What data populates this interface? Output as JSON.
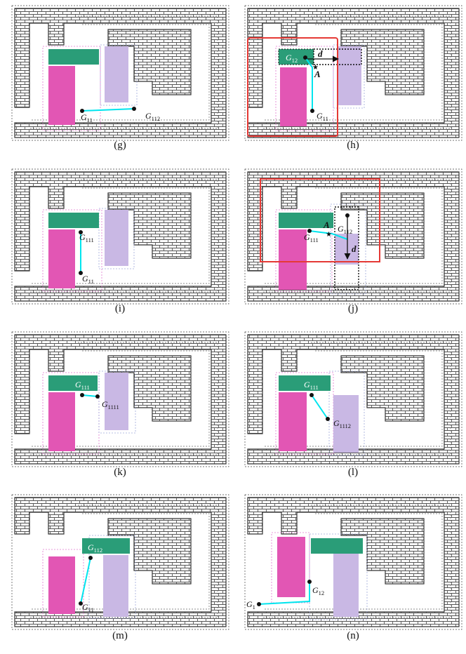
{
  "colors": {
    "brick_mortar": "#555555",
    "brick_face": "#ffffff",
    "bar": "#2a9d78",
    "magenta": "#e256b4",
    "lavender": "#c9b8e4",
    "edge": "#00e5ee",
    "frame": "#e53935"
  },
  "panels": [
    {
      "id": "g",
      "caption": "(g)",
      "labels": [
        {
          "base": "G",
          "sub": "11",
          "color": "black"
        },
        {
          "base": "G",
          "sub": "112",
          "color": "black"
        }
      ]
    },
    {
      "id": "h",
      "caption": "(h)",
      "labels": [
        {
          "base": "G",
          "sub": "12",
          "color": "white"
        },
        {
          "base": "G",
          "sub": "11",
          "color": "black"
        }
      ],
      "marks": [
        "d",
        "A"
      ]
    },
    {
      "id": "i",
      "caption": "(i)",
      "labels": [
        {
          "base": "G",
          "sub": "111",
          "color": "black"
        },
        {
          "base": "G",
          "sub": "11",
          "color": "black"
        }
      ]
    },
    {
      "id": "j",
      "caption": "(j)",
      "labels": [
        {
          "base": "G",
          "sub": "112",
          "color": "black"
        },
        {
          "base": "G",
          "sub": "111",
          "color": "black"
        }
      ],
      "marks": [
        "A",
        "d"
      ]
    },
    {
      "id": "k",
      "caption": "(k)",
      "labels": [
        {
          "base": "G",
          "sub": "111",
          "color": "white"
        },
        {
          "base": "G",
          "sub": "1111",
          "color": "black"
        }
      ]
    },
    {
      "id": "l",
      "caption": "(l)",
      "labels": [
        {
          "base": "G",
          "sub": "111",
          "color": "white"
        },
        {
          "base": "G",
          "sub": "1112",
          "color": "black"
        }
      ]
    },
    {
      "id": "m",
      "caption": "(m)",
      "labels": [
        {
          "base": "G",
          "sub": "112",
          "color": "white"
        },
        {
          "base": "G",
          "sub": "11",
          "color": "black"
        }
      ]
    },
    {
      "id": "n",
      "caption": "(n)",
      "labels": [
        {
          "base": "G",
          "sub": "12",
          "color": "black"
        },
        {
          "base": "G",
          "sub": "1",
          "color": "black"
        }
      ]
    }
  ]
}
